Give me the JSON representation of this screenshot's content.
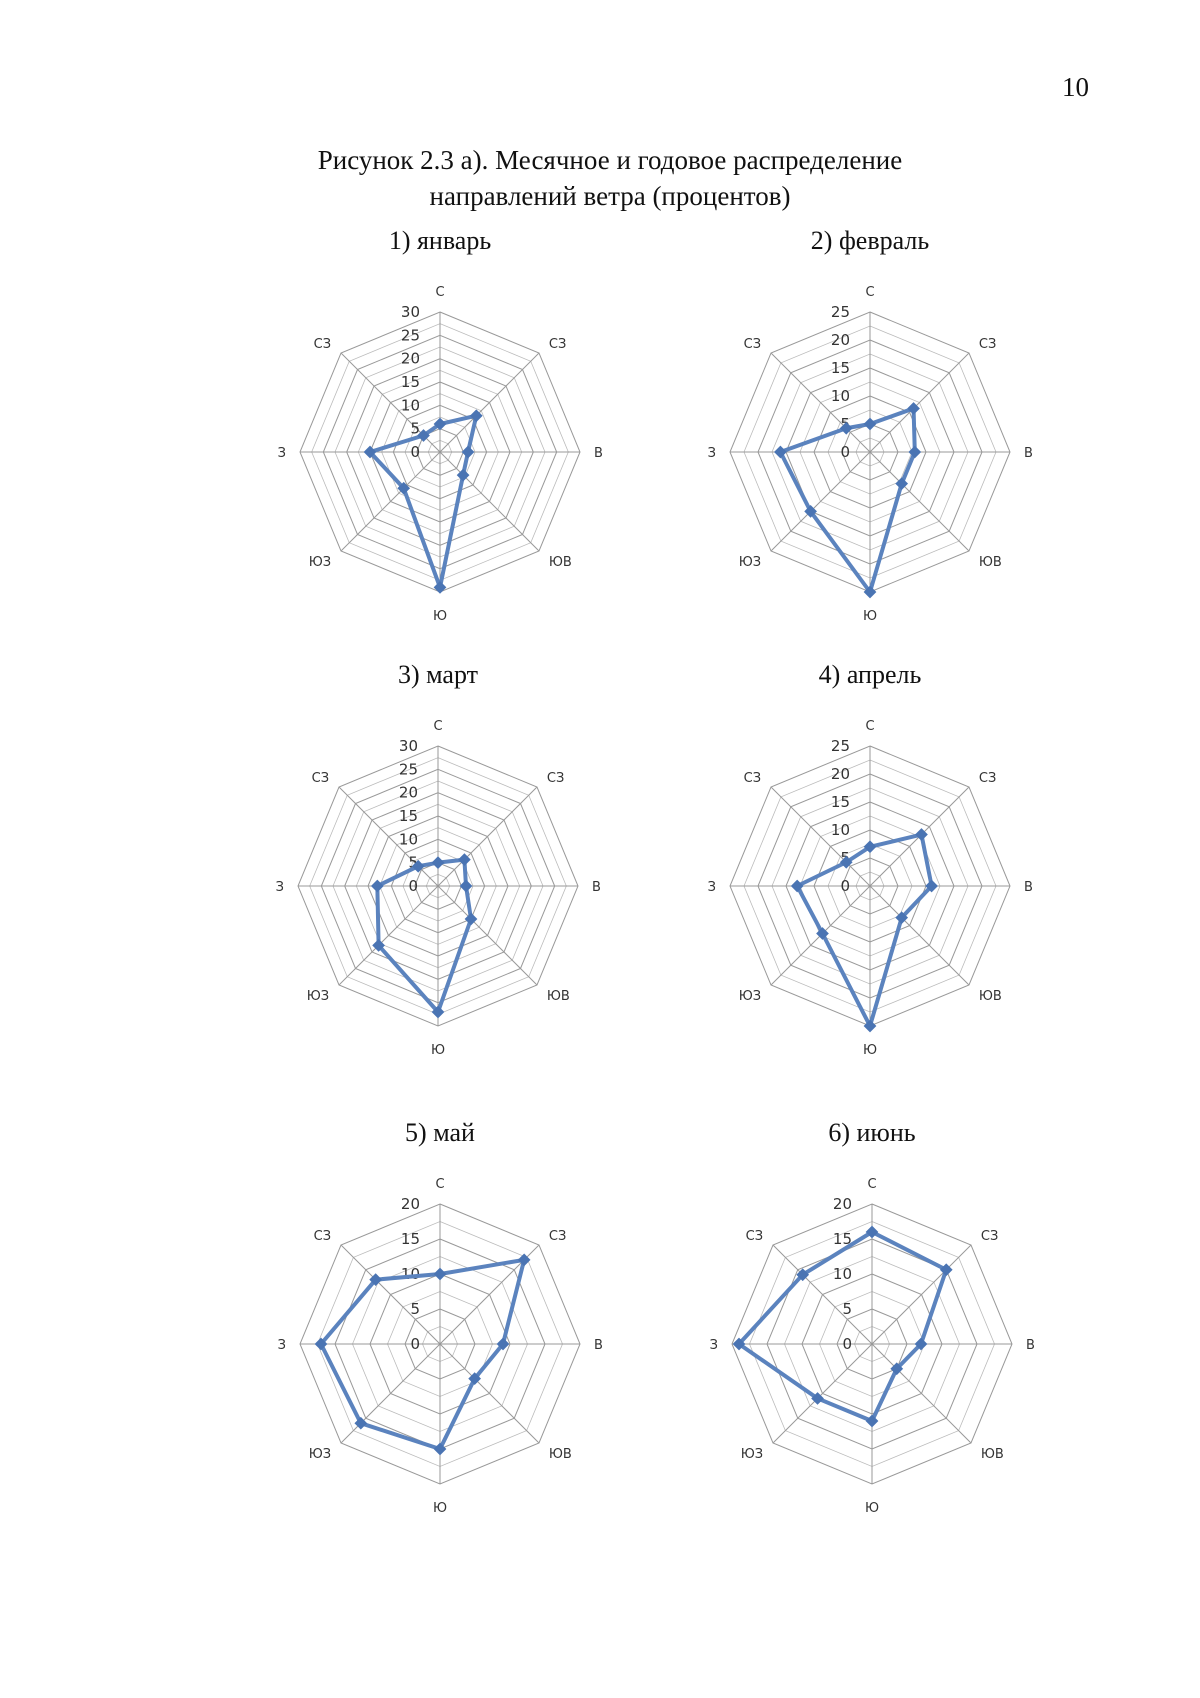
{
  "page_number": "10",
  "figure_title_line1": "Рисунок 2.3 а). Месячное и годовое распределение",
  "figure_title_line2": "направлений ветра (процентов)",
  "chart_data": [
    {
      "type": "radar",
      "title": "1) январь",
      "categories": [
        "С",
        "СЗ",
        "В",
        "ЮВ",
        "Ю",
        "ЮЗ",
        "З",
        "СЗ"
      ],
      "values": [
        6,
        11,
        6,
        7,
        29,
        11,
        15,
        5
      ],
      "ticks": [
        "0",
        "5",
        "10",
        "15",
        "20",
        "25",
        "30"
      ],
      "rlim": [
        0,
        30
      ],
      "grid_step": 2.5,
      "legend": "none"
    },
    {
      "type": "radar",
      "title": "2) февраль",
      "categories": [
        "С",
        "СЗ",
        "В",
        "ЮВ",
        "Ю",
        "ЮЗ",
        "З",
        "СЗ"
      ],
      "values": [
        5,
        11,
        8,
        8,
        25,
        15,
        16,
        6
      ],
      "ticks": [
        "0",
        "5",
        "10",
        "15",
        "20",
        "25"
      ],
      "rlim": [
        0,
        25
      ],
      "grid_step": 2.5,
      "legend": "none"
    },
    {
      "type": "radar",
      "title": "3) март",
      "categories": [
        "С",
        "СЗ",
        "В",
        "ЮВ",
        "Ю",
        "ЮЗ",
        "З",
        "СЗ"
      ],
      "values": [
        5,
        8,
        6,
        10,
        27,
        18,
        13,
        6
      ],
      "ticks": [
        "0",
        "5",
        "10",
        "15",
        "20",
        "25",
        "30"
      ],
      "rlim": [
        0,
        30
      ],
      "grid_step": 2.5,
      "legend": "none"
    },
    {
      "type": "radar",
      "title": "4) апрель",
      "categories": [
        "С",
        "СЗ",
        "В",
        "ЮВ",
        "Ю",
        "ЮЗ",
        "З",
        "СЗ"
      ],
      "values": [
        7,
        13,
        11,
        8,
        25,
        12,
        13,
        6
      ],
      "ticks": [
        "0",
        "5",
        "10",
        "15",
        "20",
        "25"
      ],
      "rlim": [
        0,
        25
      ],
      "grid_step": 2.5,
      "legend": "none"
    },
    {
      "type": "radar",
      "title": "5) май",
      "categories": [
        "С",
        "СЗ",
        "В",
        "ЮВ",
        "Ю",
        "ЮЗ",
        "З",
        "СЗ"
      ],
      "values": [
        10,
        17,
        9,
        7,
        15,
        16,
        17,
        13
      ],
      "ticks": [
        "0",
        "5",
        "10",
        "15",
        "20"
      ],
      "rlim": [
        0,
        20
      ],
      "grid_step": 2.5,
      "legend": "none"
    },
    {
      "type": "radar",
      "title": "6) июнь",
      "categories": [
        "С",
        "СЗ",
        "В",
        "ЮВ",
        "Ю",
        "ЮЗ",
        "З",
        "СЗ"
      ],
      "values": [
        16,
        15,
        7,
        5,
        11,
        11,
        19,
        14
      ],
      "ticks": [
        "0",
        "5",
        "10",
        "15",
        "20"
      ],
      "rlim": [
        0,
        20
      ],
      "grid_step": 2.5,
      "legend": "none"
    }
  ]
}
